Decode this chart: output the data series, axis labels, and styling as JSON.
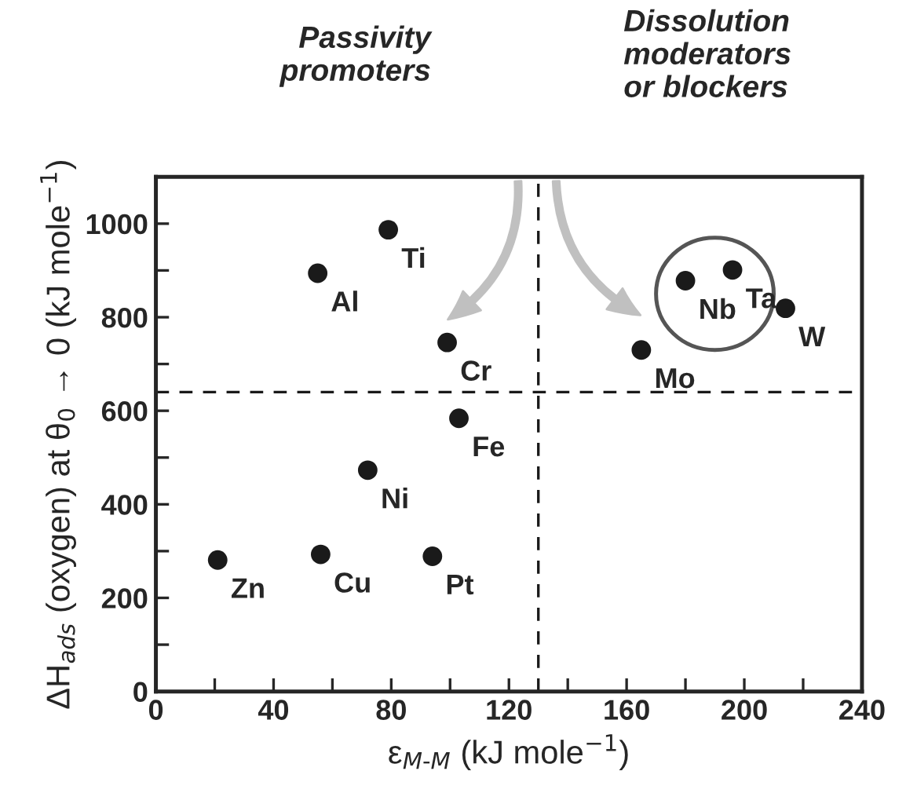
{
  "chart_data": {
    "type": "scatter",
    "xlabel": "ε$_{M-M}$ (kJ mole$^{−1}$)",
    "ylabel": "ΔH$_{ads}$ (oxygen) at θ$_{0}$ → 0 (kJ mole$^{−1}$)",
    "series": [
      {
        "color": "#1a1a1a",
        "x": [
          21,
          56,
          94,
          72,
          103,
          99,
          55,
          79,
          165,
          180,
          196,
          214
        ],
        "values": [
          281,
          293,
          289,
          473,
          584,
          746,
          894,
          987,
          730,
          878,
          901,
          819
        ]
      }
    ],
    "marker": "circle",
    "xlim": [
      0,
      240
    ],
    "ylim": [
      0,
      1100
    ],
    "xticks": [
      0,
      {
        "value": 20,
        "label": null
      },
      40,
      {
        "value": 60,
        "label": null
      },
      80,
      {
        "value": 100,
        "label": null
      },
      120,
      {
        "value": 140,
        "label": null
      },
      160,
      {
        "value": 180,
        "label": null
      },
      200,
      {
        "value": 220,
        "label": null
      },
      240
    ],
    "yticks": [
      0,
      {
        "value": 100,
        "label": null
      },
      200,
      {
        "value": 300,
        "label": null
      },
      400,
      {
        "value": 500,
        "label": null
      },
      600,
      {
        "value": 700,
        "label": null
      },
      800,
      {
        "value": 900,
        "label": null
      },
      1000
    ],
    "ref_lines": [
      {
        "axis": "x",
        "value": 130,
        "line_style": "dashed",
        "color": "#1a1a1a"
      },
      {
        "axis": "y",
        "value": 640,
        "line_style": "dashed",
        "color": "#1a1a1a"
      }
    ],
    "annotations": [
      {
        "text": "Zn",
        "x": 21,
        "y": 281
      },
      {
        "text": "Cu",
        "x": 56,
        "y": 293
      },
      {
        "text": "Pt",
        "x": 94,
        "y": 289
      },
      {
        "text": "Ni",
        "x": 72,
        "y": 473
      },
      {
        "text": "Fe",
        "x": 103,
        "y": 584
      },
      {
        "text": "Cr",
        "x": 99,
        "y": 746
      },
      {
        "text": "Al",
        "x": 55,
        "y": 894
      },
      {
        "text": "Ti",
        "x": 79,
        "y": 987
      },
      {
        "text": "Mo",
        "x": 165,
        "y": 730
      },
      {
        "text": "Nb",
        "x": 180,
        "y": 878
      },
      {
        "text": "Ta",
        "x": 196,
        "y": 901
      },
      {
        "text": "W",
        "x": 214,
        "y": 819
      },
      "Passivity promoters",
      "Dissolution moderators or blockers"
    ],
    "grid": false,
    "legend": false
  }
}
